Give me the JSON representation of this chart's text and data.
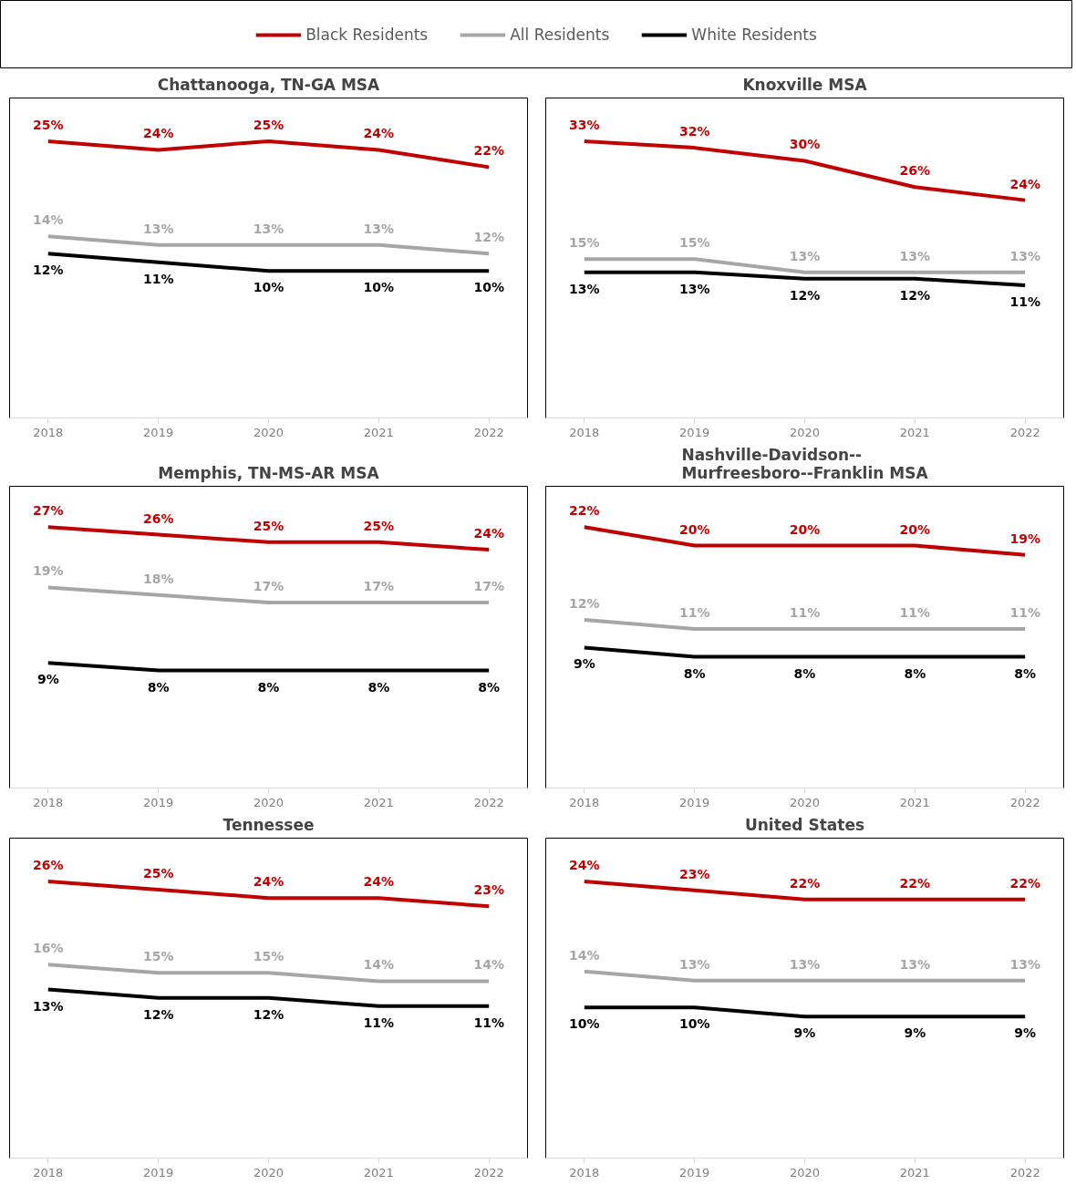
{
  "chart_data": [
    {
      "type": "line",
      "title": "Chattanooga, TN-GA MSA",
      "categories": [
        "2018",
        "2019",
        "2020",
        "2021",
        "2022"
      ],
      "legend": "top",
      "tick_labels": "x",
      "series": [
        {
          "name": "Black Residents",
          "color": "#c00000",
          "values": [
            25,
            24,
            25,
            24,
            22
          ],
          "value_labels": [
            "25%",
            "24%",
            "25%",
            "24%",
            "22%"
          ]
        },
        {
          "name": "All Residents",
          "color": "#a6a6a6",
          "values": [
            14,
            13,
            13,
            13,
            12
          ],
          "value_labels": [
            "14%",
            "13%",
            "13%",
            "13%",
            "12%"
          ]
        },
        {
          "name": "White Residents",
          "color": "#000000",
          "values": [
            12,
            11,
            10,
            10,
            10
          ],
          "value_labels": [
            "12%",
            "11%",
            "10%",
            "10%",
            "10%"
          ]
        }
      ]
    },
    {
      "type": "line",
      "title": "Knoxville MSA",
      "categories": [
        "2018",
        "2019",
        "2020",
        "2021",
        "2022"
      ],
      "tick_labels": "x",
      "series": [
        {
          "color": "#c00000",
          "values": [
            33,
            32,
            30,
            26,
            24
          ],
          "value_labels": [
            "33%",
            "32%",
            "30%",
            "26%",
            "24%"
          ]
        },
        {
          "color": "#a6a6a6",
          "values": [
            15,
            15,
            13,
            13,
            13
          ],
          "value_labels": [
            "15%",
            "15%",
            "13%",
            "13%",
            "13%"
          ]
        },
        {
          "color": "#000000",
          "values": [
            13,
            13,
            12,
            12,
            11
          ],
          "value_labels": [
            "13%",
            "13%",
            "12%",
            "12%",
            "11%"
          ]
        }
      ]
    },
    {
      "type": "line",
      "title": "Memphis, TN-MS-AR MSA",
      "categories": [
        "2018",
        "2019",
        "2020",
        "2021",
        "2022"
      ],
      "tick_labels": "x",
      "series": [
        {
          "color": "#c00000",
          "values": [
            27,
            26,
            25,
            25,
            24
          ],
          "value_labels": [
            "27%",
            "26%",
            "25%",
            "25%",
            "24%"
          ]
        },
        {
          "color": "#a6a6a6",
          "values": [
            19,
            18,
            17,
            17,
            17
          ],
          "value_labels": [
            "19%",
            "18%",
            "17%",
            "17%",
            "17%"
          ]
        },
        {
          "color": "#000000",
          "values": [
            9,
            8,
            8,
            8,
            8
          ],
          "value_labels": [
            "9%",
            "8%",
            "8%",
            "8%",
            "8%"
          ]
        }
      ]
    },
    {
      "type": "line",
      "title": "Nashville-Davidson--\nMurfreesboro--Franklin MSA",
      "categories": [
        "2018",
        "2019",
        "2020",
        "2021",
        "2022"
      ],
      "tick_labels": "x",
      "series": [
        {
          "color": "#c00000",
          "values": [
            22,
            20,
            20,
            20,
            19
          ],
          "value_labels": [
            "22%",
            "20%",
            "20%",
            "20%",
            "19%"
          ]
        },
        {
          "color": "#a6a6a6",
          "values": [
            12,
            11,
            11,
            11,
            11
          ],
          "value_labels": [
            "12%",
            "11%",
            "11%",
            "11%",
            "11%"
          ]
        },
        {
          "color": "#000000",
          "values": [
            9,
            8,
            8,
            8,
            8
          ],
          "value_labels": [
            "9%",
            "8%",
            "8%",
            "8%",
            "8%"
          ]
        }
      ]
    },
    {
      "type": "line",
      "title": "Tennessee",
      "categories": [
        "2018",
        "2019",
        "2020",
        "2021",
        "2022"
      ],
      "tick_labels": "x",
      "series": [
        {
          "color": "#c00000",
          "values": [
            26,
            25,
            24,
            24,
            23
          ],
          "value_labels": [
            "26%",
            "25%",
            "24%",
            "24%",
            "23%"
          ]
        },
        {
          "color": "#a6a6a6",
          "values": [
            16,
            15,
            15,
            14,
            14
          ],
          "value_labels": [
            "16%",
            "15%",
            "15%",
            "14%",
            "14%"
          ]
        },
        {
          "color": "#000000",
          "values": [
            13,
            12,
            12,
            11,
            11
          ],
          "value_labels": [
            "13%",
            "12%",
            "12%",
            "11%",
            "11%"
          ]
        }
      ]
    },
    {
      "type": "line",
      "title": "United States",
      "categories": [
        "2018",
        "2019",
        "2020",
        "2021",
        "2022"
      ],
      "tick_labels": "x",
      "series": [
        {
          "color": "#c00000",
          "values": [
            24,
            23,
            22,
            22,
            22
          ],
          "value_labels": [
            "24%",
            "23%",
            "22%",
            "22%",
            "22%"
          ]
        },
        {
          "color": "#a6a6a6",
          "values": [
            14,
            13,
            13,
            13,
            13
          ],
          "value_labels": [
            "14%",
            "13%",
            "13%",
            "13%",
            "13%"
          ]
        },
        {
          "color": "#000000",
          "values": [
            10,
            10,
            9,
            9,
            9
          ],
          "value_labels": [
            "10%",
            "10%",
            "9%",
            "9%",
            "9%"
          ]
        }
      ]
    }
  ]
}
